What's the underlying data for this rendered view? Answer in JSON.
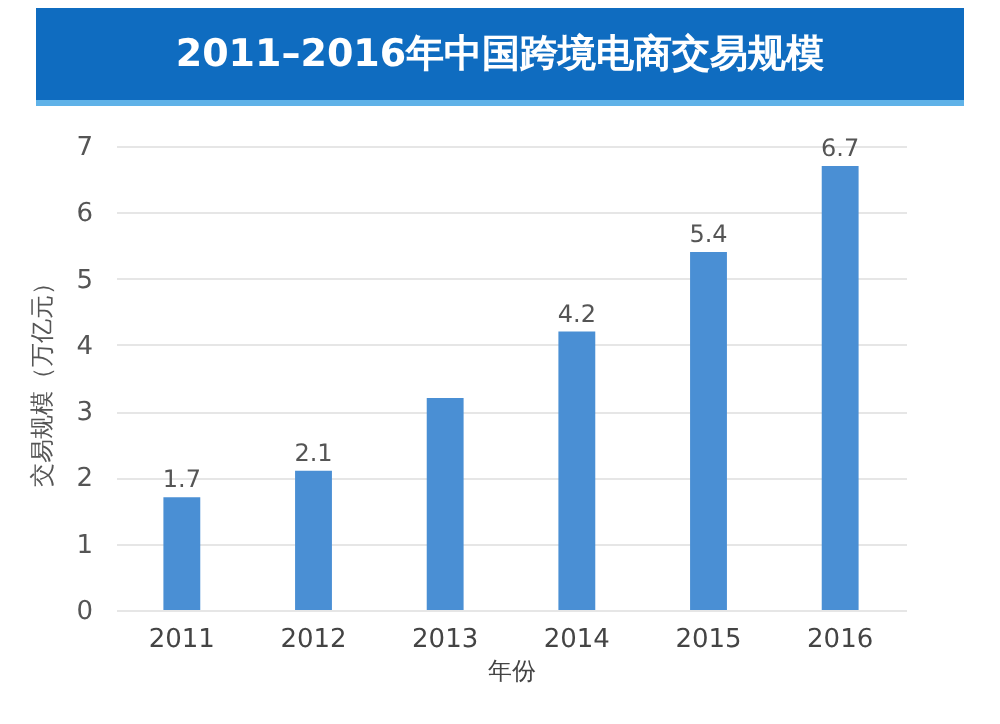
{
  "chart_data": {
    "type": "bar",
    "title": "2011–2016年中国跨境电商交易规模",
    "xlabel": "年份",
    "ylabel": "交易规模（万亿元）",
    "categories": [
      "2011",
      "2012",
      "2013",
      "2014",
      "2015",
      "2016"
    ],
    "values": [
      1.7,
      2.1,
      3.2,
      4.2,
      5.4,
      6.7
    ],
    "value_labels": [
      "1.7",
      "2.1",
      null,
      "4.2",
      "5.4",
      "6.7"
    ],
    "color": "#4a8fd4",
    "ylim": [
      0,
      7
    ],
    "yticks": [
      0,
      1,
      2,
      3,
      4,
      5,
      6,
      7
    ],
    "grid": "y"
  }
}
